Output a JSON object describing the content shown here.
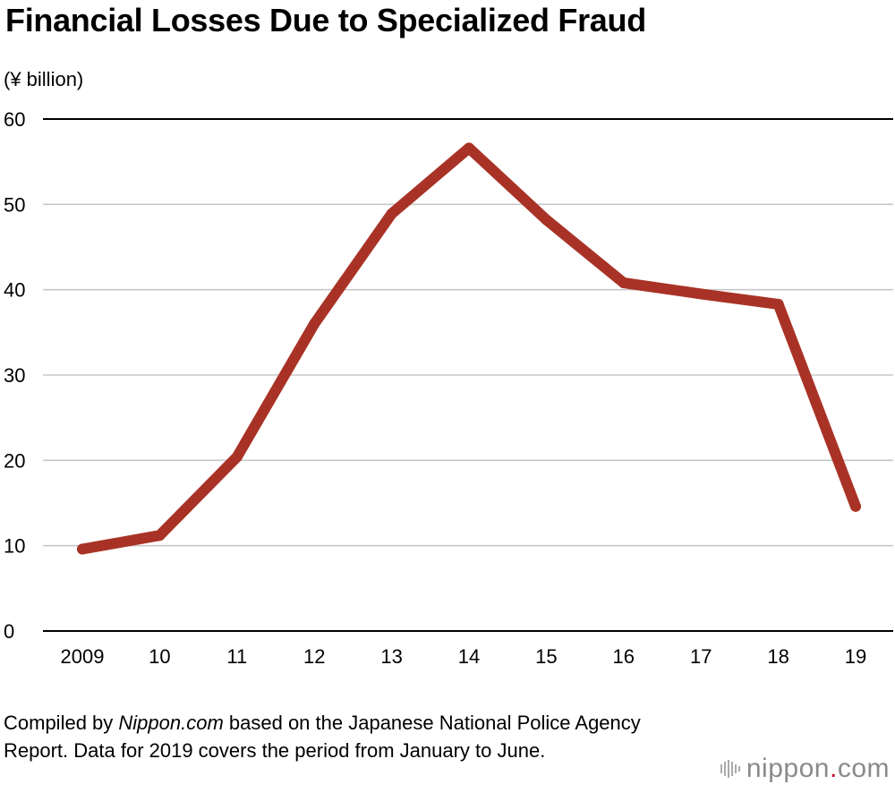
{
  "title": "Financial Losses Due to Specialized Fraud",
  "unit_label": "(¥ billion)",
  "footer": {
    "prefix": "Compiled by ",
    "source_name": "Nippon.com",
    "suffix": " based on the Japanese National Police Agency Report. Data for 2019 covers the period from January to June."
  },
  "brand": {
    "name_part1": "nippon",
    "dot": ".",
    "name_part2": "com"
  },
  "colors": {
    "line": "#a93226",
    "grid": "#c8c8c8",
    "axis": "#000000",
    "brand_dot": "#c8102e",
    "brand_text": "#8a8a8a"
  },
  "chart_data": {
    "type": "line",
    "title": "Financial Losses Due to Specialized Fraud",
    "xlabel": "",
    "ylabel": "(¥ billion)",
    "categories": [
      "2009",
      "10",
      "11",
      "12",
      "13",
      "14",
      "15",
      "16",
      "17",
      "18",
      "19"
    ],
    "series": [
      {
        "values": [
          9.6,
          11.2,
          20.4,
          36.0,
          48.9,
          56.6,
          48.2,
          40.8,
          39.5,
          38.3,
          14.6
        ]
      }
    ],
    "yticks": [
      "0",
      "10",
      "20",
      "30",
      "40",
      "50",
      "60"
    ],
    "ylim": [
      0,
      60
    ],
    "grid": true,
    "legend": "none"
  }
}
